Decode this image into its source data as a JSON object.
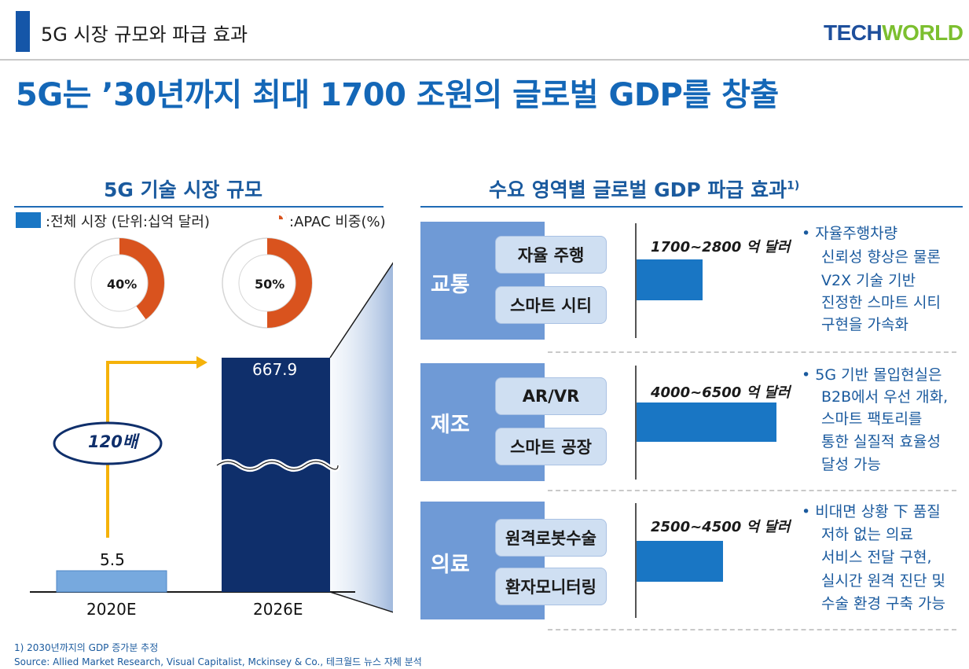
{
  "header": {
    "section_title": "5G 시장 규모와 파급 효과",
    "logo_tech": "TECH",
    "logo_world": "WORLD",
    "headline": "5G는 ’30년까지 최대 1700 조원의 글로벌 GDP를 창출"
  },
  "left_panel": {
    "title": "5G 기술 시장 규모",
    "legend": [
      {
        "label": ":전체 시장 (단위:십억 달러)",
        "color": "#1976c4"
      },
      {
        "label": ":APAC 비중(%)",
        "color": "#d9531e"
      }
    ],
    "multiplier": "120배",
    "chart_data": {
      "type": "bar",
      "title": "5G 기술 시장 규모",
      "unit": "단위:십억 달러",
      "categories": [
        "2020E",
        "2026E"
      ],
      "values": [
        5.5,
        667.9
      ],
      "value_labels": [
        "5.5",
        "667.9"
      ],
      "apac_share": [
        {
          "category": "2020E",
          "percent": 40,
          "label": "40%"
        },
        {
          "category": "2026E",
          "percent": 50,
          "label": "50%"
        }
      ],
      "axis_break": true,
      "colors": {
        "bar_2020": "#77a9de",
        "bar_2026": "#0f2f6b",
        "apac": "#d9531e",
        "donut_bg": "#ffffff"
      }
    }
  },
  "right_panel": {
    "title": "수요 영역별 글로벌 GDP 파급 효과",
    "title_superscript": "1)",
    "categories": [
      {
        "name": "교통",
        "items": [
          "자율 주행",
          "스마트 시티"
        ],
        "range": "1700~2800 억 달러",
        "range_min": 1700,
        "range_max": 2800,
        "bullets": [
          "•  자율주행차량",
          "신뢰성 향상은 물론",
          "V2X 기술 기반",
          "진정한 스마트 시티",
          "구현을 가속화"
        ]
      },
      {
        "name": "제조",
        "items": [
          "AR/VR",
          "스마트 공장"
        ],
        "range": "4000~6500 억 달러",
        "range_min": 4000,
        "range_max": 6500,
        "bullets": [
          "•  5G 기반 몰입현실은",
          "B2B에서 우선 개화,",
          "스마트 팩토리를",
          "통한 실질적 효율성",
          "달성 가능"
        ]
      },
      {
        "name": "의료",
        "items": [
          "원격로봇수술",
          "환자모니터링"
        ],
        "range": "2500~4500 억 달러",
        "range_min": 2500,
        "range_max": 4500,
        "bullets": [
          "•  비대면 상황 下 품질",
          "저하 없는 의료",
          "서비스 전달 구현,",
          "실시간 원격 진단 및",
          "수술 환경 구축 가능"
        ]
      }
    ]
  },
  "footer": {
    "note": "1) 2030년까지의 GDP 증가분 추정",
    "source": "Source: Allied Market Research, Visual Capitalist, Mckinsey & Co., 테크월드 뉴스 자체 분석"
  }
}
